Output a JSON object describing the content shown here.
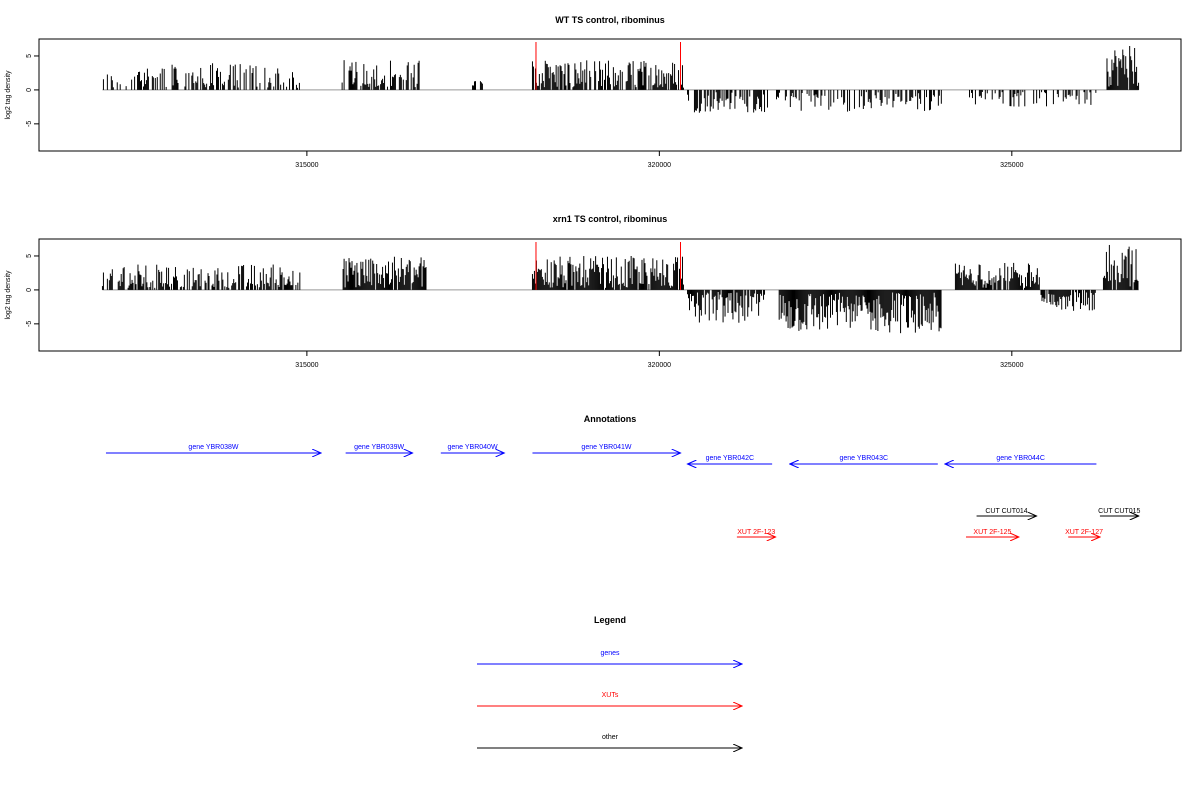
{
  "colors": {
    "data": "#000000",
    "gene": "#0000ff",
    "xut": "#ff0000",
    "other": "#000000",
    "baseline": "#999999",
    "marker": "#ff0000"
  },
  "annotations": {
    "title": "Annotations",
    "genes": [
      {
        "label": "gene YBR038W",
        "start": 312150,
        "end": 315200,
        "strand": "+"
      },
      {
        "label": "gene YBR039W",
        "start": 315550,
        "end": 316500,
        "strand": "+"
      },
      {
        "label": "gene YBR040W",
        "start": 316900,
        "end": 317800,
        "strand": "+"
      },
      {
        "label": "gene YBR041W",
        "start": 318200,
        "end": 320300,
        "strand": "+"
      },
      {
        "label": "gene YBR042C",
        "start": 320400,
        "end": 321600,
        "strand": "-"
      },
      {
        "label": "gene YBR043C",
        "start": 321850,
        "end": 323950,
        "strand": "-"
      },
      {
        "label": "gene YBR044C",
        "start": 324050,
        "end": 326200,
        "strand": "-"
      }
    ],
    "others": [
      {
        "label": "CUT CUT014",
        "start": 324500,
        "end": 325350,
        "strand": "+"
      },
      {
        "label": "CUT CUT015",
        "start": 326250,
        "end": 326800,
        "strand": "+"
      }
    ],
    "xuts": [
      {
        "label": "XUT 2F-123",
        "start": 321100,
        "end": 321650,
        "strand": "+"
      },
      {
        "label": "XUT 2F-125",
        "start": 324350,
        "end": 325100,
        "strand": "+"
      },
      {
        "label": "XUT 2F-127",
        "start": 325800,
        "end": 326250,
        "strand": "+"
      }
    ]
  },
  "legend": {
    "title": "Legend",
    "items": [
      {
        "label": "genes",
        "color": "#0000ff"
      },
      {
        "label": "XUTs",
        "color": "#ff0000"
      },
      {
        "label": "other",
        "color": "#000000"
      }
    ]
  },
  "chart_data": [
    {
      "type": "bar",
      "title": "WT TS control, ribominus",
      "xlabel": "",
      "ylabel": "log2 tag density",
      "xlim": [
        311200,
        327400
      ],
      "ylim": [
        -9,
        7.5
      ],
      "x_ticks": [
        315000,
        320000,
        325000
      ],
      "y_ticks": [
        -5,
        0,
        5
      ],
      "markers_x": [
        318250,
        320300
      ],
      "segments": [
        {
          "start": 312100,
          "end": 312500,
          "mean": 1.2,
          "amp": 1.4,
          "density": 0.35
        },
        {
          "start": 312500,
          "end": 314900,
          "mean": 1.8,
          "amp": 2.2,
          "density": 0.55
        },
        {
          "start": 315500,
          "end": 316600,
          "mean": 2.0,
          "amp": 2.5,
          "density": 0.7
        },
        {
          "start": 317350,
          "end": 317500,
          "mean": 1.0,
          "amp": 0.6,
          "density": 0.5
        },
        {
          "start": 318200,
          "end": 320350,
          "mean": 2.0,
          "amp": 2.4,
          "density": 0.75
        },
        {
          "start": 320400,
          "end": 321550,
          "mean": -1.8,
          "amp": 1.6,
          "density": 0.6
        },
        {
          "start": 321550,
          "end": 324000,
          "mean": -1.4,
          "amp": 1.8,
          "density": 0.5
        },
        {
          "start": 324400,
          "end": 326200,
          "mean": -1.2,
          "amp": 1.3,
          "density": 0.35
        },
        {
          "start": 326350,
          "end": 326800,
          "mean": 3.5,
          "amp": 3.0,
          "density": 0.9
        }
      ]
    },
    {
      "type": "bar",
      "title": "xrn1 TS control, ribominus",
      "xlabel": "",
      "ylabel": "log2 tag density",
      "xlim": [
        311200,
        327400
      ],
      "ylim": [
        -9,
        7.5
      ],
      "x_ticks": [
        315000,
        320000,
        325000
      ],
      "y_ticks": [
        -5,
        0,
        5
      ],
      "markers_x": [
        318250,
        320300
      ],
      "segments": [
        {
          "start": 312100,
          "end": 314900,
          "mean": 1.6,
          "amp": 2.2,
          "density": 0.7
        },
        {
          "start": 315500,
          "end": 316700,
          "mean": 2.4,
          "amp": 2.6,
          "density": 0.95
        },
        {
          "start": 318200,
          "end": 320350,
          "mean": 2.4,
          "amp": 2.6,
          "density": 0.95
        },
        {
          "start": 320400,
          "end": 321500,
          "mean": -2.6,
          "amp": 2.6,
          "density": 0.9
        },
        {
          "start": 321700,
          "end": 324000,
          "mean": -3.2,
          "amp": 3.2,
          "density": 1.0
        },
        {
          "start": 324200,
          "end": 325400,
          "mean": 1.8,
          "amp": 2.2,
          "density": 0.8
        },
        {
          "start": 325400,
          "end": 326200,
          "mean": -1.6,
          "amp": 1.6,
          "density": 0.8
        },
        {
          "start": 326300,
          "end": 326800,
          "mean": 3.5,
          "amp": 3.2,
          "density": 0.95
        }
      ]
    }
  ]
}
